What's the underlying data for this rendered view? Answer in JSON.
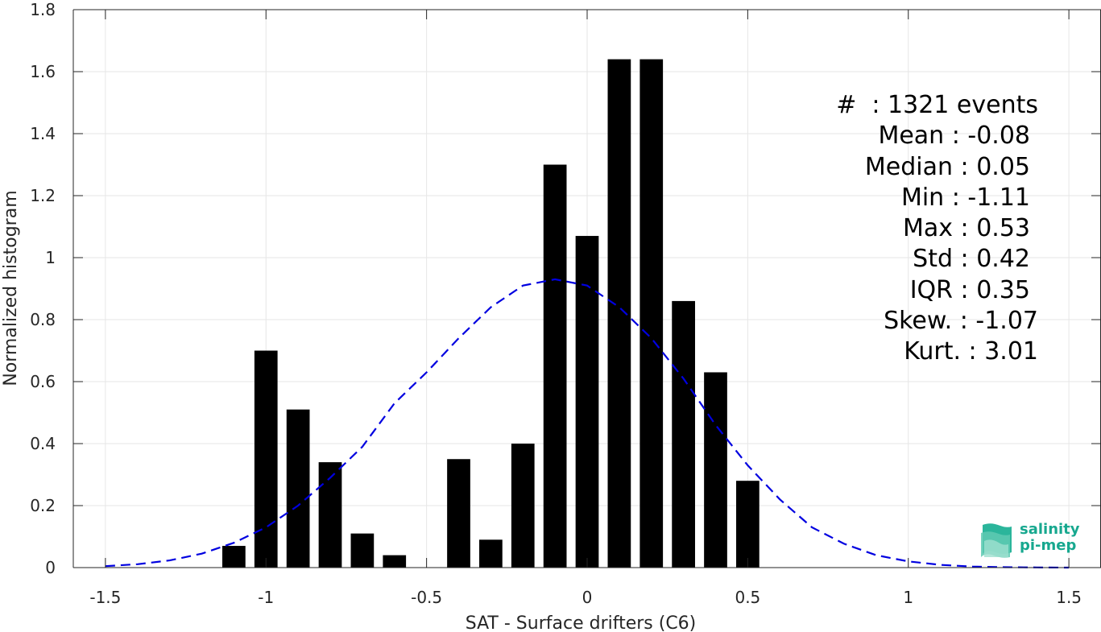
{
  "chart_data": {
    "type": "bar",
    "xlabel": "SAT - Surface drifters (C6)",
    "ylabel": "Normalized histogram",
    "xlim": [
      -1.6,
      1.6
    ],
    "ylim": [
      0,
      1.8
    ],
    "xticks": [
      -1.5,
      -1,
      -0.5,
      0,
      0.5,
      1,
      1.5
    ],
    "xtick_labels": [
      "-1.5",
      "-1",
      "-0.5",
      "0",
      "0.5",
      "1",
      "1.5"
    ],
    "yticks": [
      0,
      0.2,
      0.4,
      0.6,
      0.8,
      1,
      1.2,
      1.4,
      1.6,
      1.8
    ],
    "ytick_labels": [
      "0",
      "0.2",
      "0.4",
      "0.6",
      "0.8",
      "1",
      "1.2",
      "1.4",
      "1.6",
      "1.8"
    ],
    "grid": true,
    "bar_color": "#000000",
    "bars": {
      "x": [
        -1.1,
        -1.0,
        -0.9,
        -0.8,
        -0.7,
        -0.6,
        -0.4,
        -0.3,
        -0.2,
        -0.1,
        0.0,
        0.1,
        0.2,
        0.3,
        0.4,
        0.5
      ],
      "values": [
        0.07,
        0.7,
        0.51,
        0.34,
        0.11,
        0.04,
        0.35,
        0.09,
        0.4,
        1.3,
        1.07,
        1.64,
        1.64,
        0.86,
        0.63,
        0.28
      ],
      "width": 0.072
    },
    "fit_curve": {
      "style": "dashed",
      "color": "#0000e0",
      "x": [
        -1.5,
        -1.4,
        -1.3,
        -1.2,
        -1.1,
        -1.0,
        -0.9,
        -0.8,
        -0.7,
        -0.6,
        -0.5,
        -0.4,
        -0.3,
        -0.2,
        -0.1,
        0.0,
        0.1,
        0.2,
        0.3,
        0.4,
        0.5,
        0.6,
        0.7,
        0.8,
        0.9,
        1.0,
        1.1,
        1.2,
        1.3,
        1.4,
        1.5
      ],
      "y": [
        0.0046,
        0.011,
        0.023,
        0.045,
        0.08,
        0.13,
        0.2,
        0.29,
        0.39,
        0.53,
        0.63,
        0.74,
        0.84,
        0.91,
        0.93,
        0.91,
        0.84,
        0.74,
        0.61,
        0.46,
        0.33,
        0.22,
        0.13,
        0.077,
        0.04,
        0.02,
        0.0088,
        0.0035,
        0.0013,
        0.0004,
        0.0001
      ]
    }
  },
  "stats": {
    "count": "#  : 1321 events",
    "mean": "Mean : -0.08",
    "median": "Median : 0.05",
    "min": "Min : -1.11",
    "max": "Max : 0.53",
    "std": "Std : 0.42",
    "iqr": "IQR : 0.35",
    "skew": "Skew. : -1.07",
    "kurt": "Kurt. : 3.01"
  },
  "logo": {
    "line1": "salinity",
    "line2": "pi-mep",
    "color": "#17a88f"
  }
}
